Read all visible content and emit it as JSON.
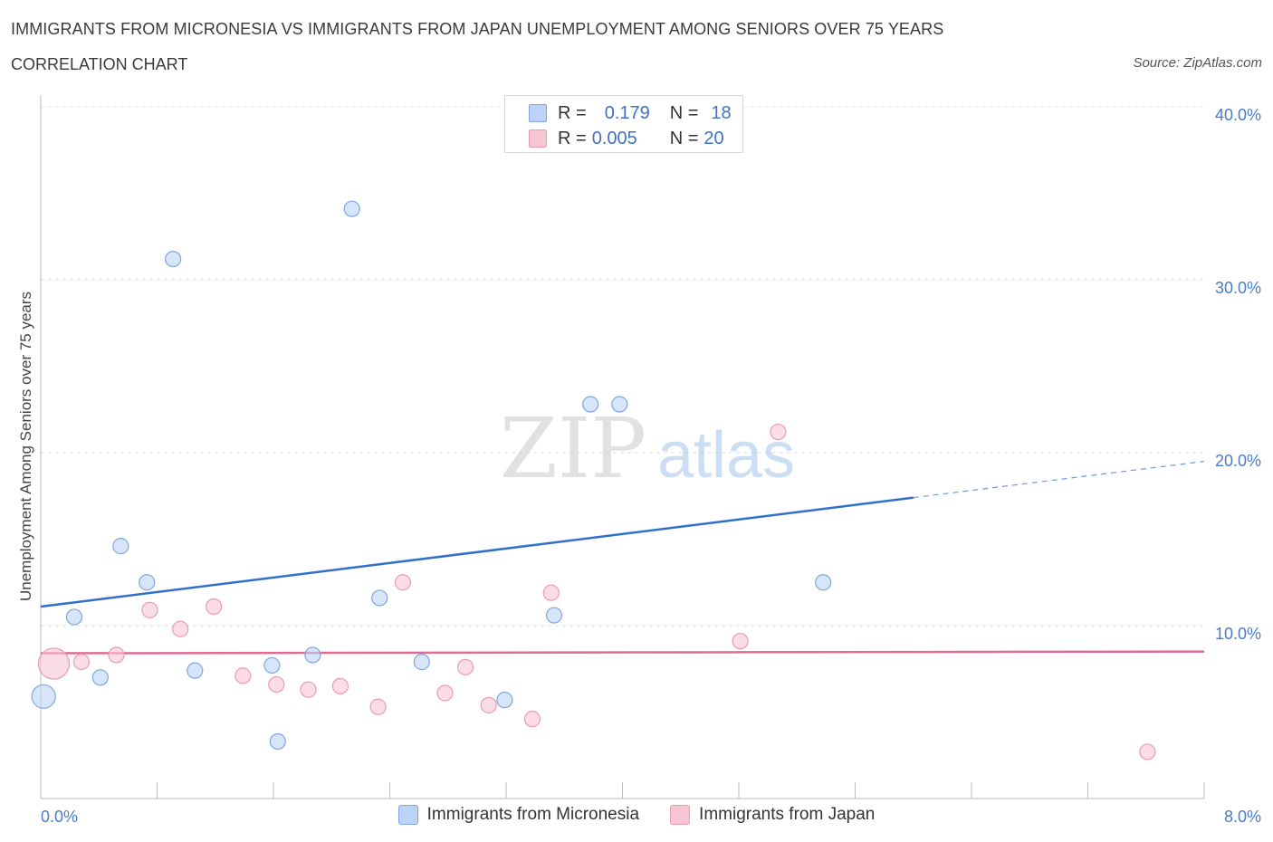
{
  "header": {
    "title": "IMMIGRANTS FROM MICRONESIA VS IMMIGRANTS FROM JAPAN UNEMPLOYMENT AMONG SENIORS OVER 75 YEARS",
    "subtitle": "CORRELATION CHART",
    "source": "Source: ZipAtlas.com"
  },
  "watermark": {
    "zip": "ZIP",
    "atlas": "atlas"
  },
  "legend": {
    "rows": [
      {
        "r_label": "R =",
        "r_value": "0.179",
        "n_label": "N =",
        "n_value": "18"
      },
      {
        "r_label": "R =",
        "r_value": "0.005",
        "n_label": "N =",
        "n_value": "20"
      }
    ]
  },
  "colors": {
    "micronesia_fill": "#bcd3f5",
    "micronesia_stroke": "#7fa6e0",
    "micronesia_line": "#2f6fcf",
    "japan_fill": "#f8c6d3",
    "japan_stroke": "#ec9ab3",
    "japan_line": "#e26b93",
    "tick_text": "#4a7cc9"
  },
  "chart_data": {
    "type": "scatter",
    "title": "IMMIGRANTS FROM MICRONESIA VS IMMIGRANTS FROM JAPAN UNEMPLOYMENT AMONG SENIORS OVER 75 YEARS",
    "xlabel": "",
    "ylabel": "Unemployment Among Seniors over 75 years",
    "xlim": [
      0,
      8
    ],
    "ylim": [
      0,
      40
    ],
    "x_tick_labels": [
      "0.0%",
      "8.0%"
    ],
    "y_ticks": [
      10,
      20,
      30,
      40
    ],
    "y_tick_labels": [
      "10.0%",
      "20.0%",
      "30.0%",
      "40.0%"
    ],
    "grid": true,
    "legend_position": "bottom-center",
    "series": [
      {
        "name": "Immigrants from Micronesia",
        "R": 0.179,
        "N": 18,
        "points": [
          {
            "x": 0.02,
            "y": 5.9,
            "size": "large"
          },
          {
            "x": 0.23,
            "y": 10.5
          },
          {
            "x": 0.41,
            "y": 7.0
          },
          {
            "x": 0.55,
            "y": 14.6
          },
          {
            "x": 0.73,
            "y": 12.5
          },
          {
            "x": 0.91,
            "y": 31.2
          },
          {
            "x": 1.06,
            "y": 7.4
          },
          {
            "x": 1.59,
            "y": 7.7
          },
          {
            "x": 1.63,
            "y": 3.3
          },
          {
            "x": 1.87,
            "y": 8.3
          },
          {
            "x": 2.14,
            "y": 34.1
          },
          {
            "x": 2.33,
            "y": 11.6
          },
          {
            "x": 2.62,
            "y": 7.9
          },
          {
            "x": 3.19,
            "y": 5.7
          },
          {
            "x": 3.53,
            "y": 10.6
          },
          {
            "x": 3.78,
            "y": 22.8
          },
          {
            "x": 3.98,
            "y": 22.8
          },
          {
            "x": 5.38,
            "y": 12.5
          }
        ],
        "trend": {
          "x_start": 0,
          "y_start": 11.1,
          "x_solid_end": 6.0,
          "y_solid_end": 17.4,
          "x_end": 8.0,
          "y_end": 19.5
        }
      },
      {
        "name": "Immigrants from Japan",
        "R": 0.005,
        "N": 20,
        "points": [
          {
            "x": 0.09,
            "y": 7.8,
            "size": "xlarge"
          },
          {
            "x": 0.28,
            "y": 7.9
          },
          {
            "x": 0.52,
            "y": 8.3
          },
          {
            "x": 0.75,
            "y": 10.9
          },
          {
            "x": 0.96,
            "y": 9.8
          },
          {
            "x": 1.19,
            "y": 11.1
          },
          {
            "x": 1.39,
            "y": 7.1
          },
          {
            "x": 1.62,
            "y": 6.6
          },
          {
            "x": 1.84,
            "y": 6.3
          },
          {
            "x": 2.06,
            "y": 6.5
          },
          {
            "x": 2.32,
            "y": 5.3
          },
          {
            "x": 2.49,
            "y": 12.5
          },
          {
            "x": 2.78,
            "y": 6.1
          },
          {
            "x": 2.92,
            "y": 7.6
          },
          {
            "x": 3.08,
            "y": 5.4
          },
          {
            "x": 3.38,
            "y": 4.6
          },
          {
            "x": 3.51,
            "y": 11.9
          },
          {
            "x": 4.81,
            "y": 9.1
          },
          {
            "x": 5.07,
            "y": 21.2
          },
          {
            "x": 7.61,
            "y": 2.7
          }
        ],
        "trend": {
          "x_start": 0,
          "y_start": 8.4,
          "x_end": 8.0,
          "y_end": 8.5
        }
      }
    ]
  }
}
